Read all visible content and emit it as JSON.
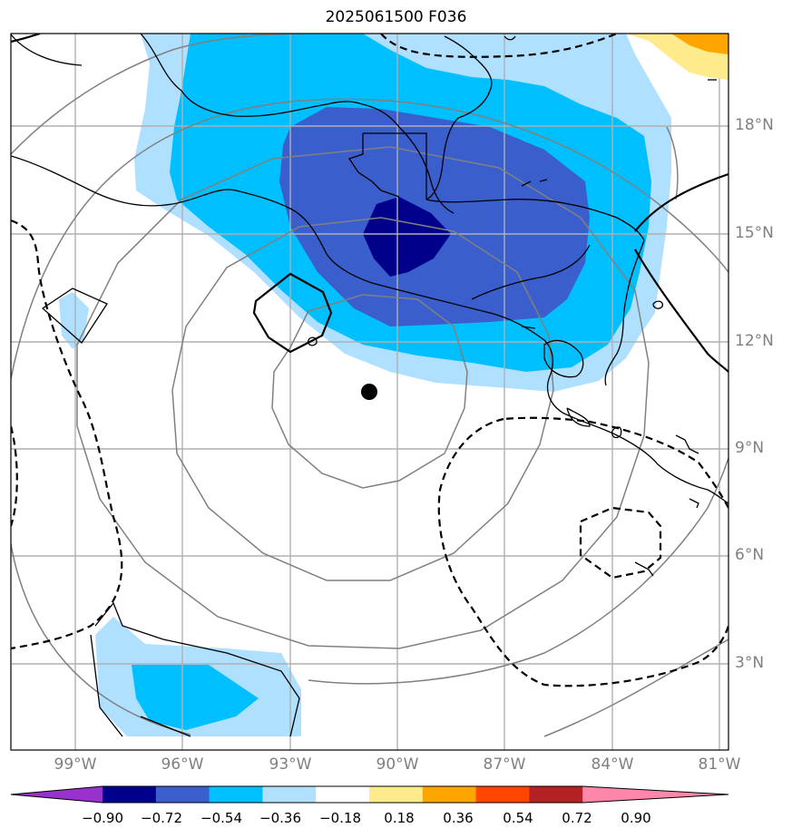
{
  "title": "2025061500 F036",
  "lat_labels": [
    "18°N",
    "15°N",
    "12°N",
    "9°N",
    "6°N",
    "3°N"
  ],
  "lon_labels": [
    "99°W",
    "96°W",
    "93°W",
    "90°W",
    "87°W",
    "84°W",
    "81°W"
  ],
  "colorbar": {
    "ticks": [
      "−0.90",
      "−0.72",
      "−0.54",
      "−0.36",
      "−0.18",
      "0.18",
      "0.36",
      "0.54",
      "0.72",
      "0.90"
    ],
    "colors": [
      "#9932cc",
      "#00008b",
      "#3a5fcd",
      "#00bfff",
      "#b0e0ff",
      "#ffffff",
      "#ffeb8c",
      "#ffa500",
      "#ff4500",
      "#b22222",
      "#ff88aa"
    ]
  },
  "marker": "storm-center-dot"
}
